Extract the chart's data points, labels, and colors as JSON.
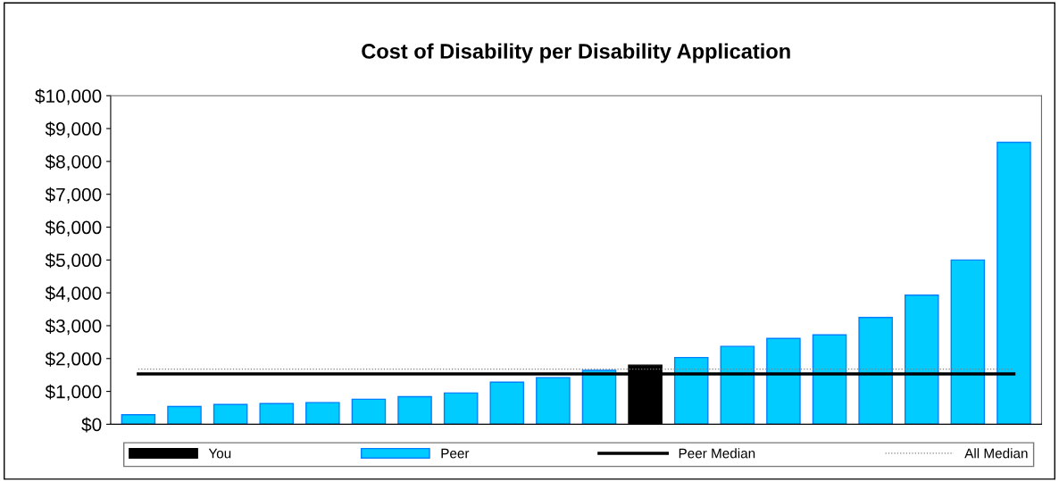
{
  "chart_data": {
    "type": "bar",
    "title": "Cost of Disability per Disability Application",
    "categories": [
      null,
      null,
      null,
      null,
      null,
      null,
      null,
      null,
      null,
      null,
      null,
      null,
      null,
      null,
      null,
      null,
      null,
      null,
      null,
      null
    ],
    "series": [
      {
        "name": "You",
        "color": "#000000",
        "values": [
          null,
          null,
          null,
          null,
          null,
          null,
          null,
          null,
          null,
          null,
          null,
          1800,
          null,
          null,
          null,
          null,
          null,
          null,
          null,
          null
        ]
      },
      {
        "name": "Peer",
        "color": "#00ccff",
        "values": [
          290,
          540,
          600,
          630,
          660,
          760,
          840,
          950,
          1280,
          1420,
          1640,
          null,
          2030,
          2370,
          2610,
          2720,
          3250,
          3930,
          5000,
          8580
        ]
      },
      {
        "name": "Peer Median",
        "type": "line",
        "color": "#000000",
        "line_style": "solid",
        "values": [
          1530,
          1530,
          1530,
          1530,
          1530,
          1530,
          1530,
          1530,
          1530,
          1530,
          1530,
          1530,
          1530,
          1530,
          1530,
          1530,
          1530,
          1530,
          1530,
          1530
        ]
      },
      {
        "name": "All Median",
        "type": "line",
        "color": "#808080",
        "line_style": "dotted",
        "values": [
          1680,
          1680,
          1680,
          1680,
          1680,
          1680,
          1680,
          1680,
          1680,
          1680,
          1680,
          1680,
          1680,
          1680,
          1680,
          1680,
          1680,
          1680,
          1680,
          1680
        ]
      }
    ],
    "ylim": [
      0,
      10000
    ],
    "yticks": [
      {
        "value": 0,
        "label": "$0"
      },
      {
        "value": 1000,
        "label": "$1,000"
      },
      {
        "value": 2000,
        "label": "$2,000"
      },
      {
        "value": 3000,
        "label": "$3,000"
      },
      {
        "value": 4000,
        "label": "$4,000"
      },
      {
        "value": 5000,
        "label": "$5,000"
      },
      {
        "value": 6000,
        "label": "$6,000"
      },
      {
        "value": 7000,
        "label": "$7,000"
      },
      {
        "value": 8000,
        "label": "$8,000"
      },
      {
        "value": 9000,
        "label": "$9,000"
      },
      {
        "value": 10000,
        "label": "$10,000"
      }
    ],
    "grid": false,
    "legend": "bottom"
  }
}
